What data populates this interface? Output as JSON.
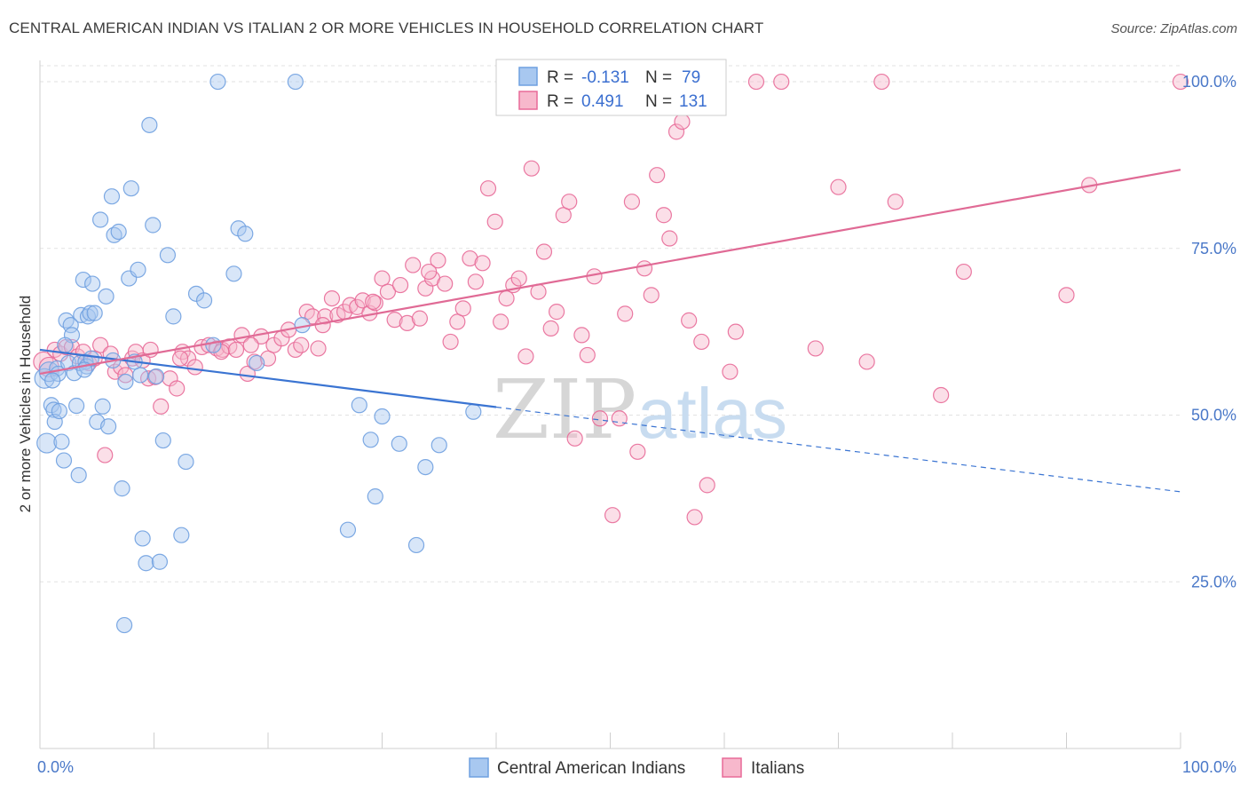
{
  "header": {
    "title": "CENTRAL AMERICAN INDIAN VS ITALIAN 2 OR MORE VEHICLES IN HOUSEHOLD CORRELATION CHART",
    "source": "Source: ZipAtlas.com"
  },
  "legend": {
    "rows": [
      {
        "r_label": "R =",
        "r_value": "-0.131",
        "n_label": "N =",
        "n_value": "79",
        "color": "#a8c8f0"
      },
      {
        "r_label": "R =",
        "r_value": "0.491",
        "n_label": "N =",
        "n_value": "131",
        "color": "#f7b8cc"
      }
    ]
  },
  "watermark": {
    "zip": "ZIP",
    "atlas": "atlas"
  },
  "chart_data": {
    "type": "scatter",
    "xlabel": "",
    "ylabel": "2 or more Vehicles in Household",
    "xlim": [
      0,
      100
    ],
    "ylim": [
      0,
      104
    ],
    "x_tick_labels": [
      "0.0%",
      "100.0%"
    ],
    "y_ticks": [
      25,
      50,
      75,
      100
    ],
    "y_tick_labels": [
      "25.0%",
      "50.0%",
      "75.0%",
      "100.0%"
    ],
    "grid": true,
    "legend_position": "top-center",
    "series": [
      {
        "name": "Central American Indians",
        "color": "#6fa0e0",
        "fill": "#a8c8f0",
        "trend": {
          "x0": 0,
          "y0": 59.8,
          "x1": 40,
          "y1": 51.2,
          "dashed_to_x": 100,
          "dashed_to_y": 38.5
        },
        "points": [
          [
            0.4,
            55.5
          ],
          [
            0.6,
            45.8
          ],
          [
            0.8,
            56.5
          ],
          [
            1.0,
            51.5
          ],
          [
            1.2,
            50.8
          ],
          [
            1.3,
            49
          ],
          [
            1.5,
            57
          ],
          [
            1.6,
            56.2
          ],
          [
            1.7,
            50.6
          ],
          [
            1.9,
            46
          ],
          [
            2.1,
            43.2
          ],
          [
            2.3,
            64.2
          ],
          [
            2.5,
            57.8
          ],
          [
            2.7,
            63.5
          ],
          [
            2.8,
            62
          ],
          [
            3.0,
            56.3
          ],
          [
            3.2,
            51.4
          ],
          [
            3.4,
            41
          ],
          [
            3.5,
            57.8
          ],
          [
            3.6,
            65
          ],
          [
            3.8,
            70.3
          ],
          [
            4.0,
            58
          ],
          [
            4.1,
            57.3
          ],
          [
            4.2,
            64.8
          ],
          [
            4.4,
            65.3
          ],
          [
            4.6,
            69.7
          ],
          [
            4.8,
            65.3
          ],
          [
            5.0,
            49
          ],
          [
            5.3,
            79.3
          ],
          [
            5.5,
            51.3
          ],
          [
            5.8,
            67.8
          ],
          [
            6.0,
            48.3
          ],
          [
            6.3,
            82.8
          ],
          [
            6.5,
            77
          ],
          [
            6.9,
            77.5
          ],
          [
            7.2,
            39
          ],
          [
            7.5,
            55
          ],
          [
            7.8,
            70.5
          ],
          [
            8.0,
            84
          ],
          [
            8.3,
            58
          ],
          [
            8.6,
            71.8
          ],
          [
            9.0,
            31.5
          ],
          [
            9.3,
            27.8
          ],
          [
            9.6,
            93.5
          ],
          [
            9.9,
            78.5
          ],
          [
            10.2,
            55.8
          ],
          [
            10.5,
            28
          ],
          [
            10.8,
            46.2
          ],
          [
            11.2,
            74
          ],
          [
            11.7,
            64.8
          ],
          [
            12.4,
            32
          ],
          [
            12.8,
            43
          ],
          [
            13.7,
            68.2
          ],
          [
            14.4,
            67.2
          ],
          [
            15.2,
            60.5
          ],
          [
            15.6,
            100
          ],
          [
            17.0,
            71.2
          ],
          [
            17.4,
            78
          ],
          [
            18.0,
            77.2
          ],
          [
            19.0,
            57.8
          ],
          [
            22.4,
            100
          ],
          [
            23.0,
            63.5
          ],
          [
            27.0,
            32.8
          ],
          [
            28.0,
            51.5
          ],
          [
            29.0,
            46.3
          ],
          [
            29.4,
            37.8
          ],
          [
            30.0,
            49.8
          ],
          [
            31.5,
            45.7
          ],
          [
            33.0,
            30.5
          ],
          [
            33.8,
            42.2
          ],
          [
            35.0,
            45.5
          ],
          [
            38.0,
            50.5
          ],
          [
            7.4,
            18.5
          ],
          [
            2.2,
            60.5
          ],
          [
            4.5,
            58.5
          ],
          [
            1.1,
            55.2
          ],
          [
            3.9,
            56.8
          ],
          [
            6.4,
            58.2
          ],
          [
            8.8,
            56
          ]
        ]
      },
      {
        "name": "Italians",
        "color": "#e86a98",
        "fill": "#f7b8cc",
        "trend": {
          "x0": 0,
          "y0": 56.2,
          "x1": 100,
          "y1": 86.8
        },
        "points": [
          [
            0.3,
            58
          ],
          [
            0.8,
            57.2
          ],
          [
            1.3,
            59.8
          ],
          [
            1.8,
            59.2
          ],
          [
            2.3,
            60.2
          ],
          [
            2.8,
            60.2
          ],
          [
            3.3,
            58.8
          ],
          [
            3.8,
            59.5
          ],
          [
            4.3,
            57.8
          ],
          [
            4.8,
            58.5
          ],
          [
            5.3,
            60.5
          ],
          [
            5.7,
            44
          ],
          [
            6.2,
            59.2
          ],
          [
            6.6,
            56.5
          ],
          [
            7.1,
            57.2
          ],
          [
            7.5,
            56
          ],
          [
            8.1,
            58.5
          ],
          [
            8.4,
            59.5
          ],
          [
            9.0,
            58.2
          ],
          [
            9.5,
            55.5
          ],
          [
            10.1,
            55.7
          ],
          [
            10.6,
            51.3
          ],
          [
            11.4,
            55.5
          ],
          [
            12.0,
            54
          ],
          [
            12.5,
            59.5
          ],
          [
            13.0,
            58.5
          ],
          [
            13.6,
            57.2
          ],
          [
            14.2,
            60.2
          ],
          [
            14.8,
            60.5
          ],
          [
            15.5,
            60
          ],
          [
            16.0,
            59.8
          ],
          [
            16.6,
            60.3
          ],
          [
            17.2,
            59.8
          ],
          [
            17.7,
            62
          ],
          [
            18.2,
            56.2
          ],
          [
            18.8,
            58
          ],
          [
            19.4,
            61.8
          ],
          [
            20.0,
            58.5
          ],
          [
            20.5,
            60.5
          ],
          [
            21.2,
            61.5
          ],
          [
            21.8,
            62.8
          ],
          [
            22.4,
            59.8
          ],
          [
            22.9,
            60.5
          ],
          [
            23.4,
            65.5
          ],
          [
            23.9,
            64.8
          ],
          [
            24.4,
            60
          ],
          [
            25.0,
            64.8
          ],
          [
            25.6,
            67.5
          ],
          [
            26.1,
            65
          ],
          [
            26.7,
            65.5
          ],
          [
            27.2,
            66.5
          ],
          [
            27.8,
            66.2
          ],
          [
            28.3,
            67.2
          ],
          [
            28.9,
            65.3
          ],
          [
            29.4,
            66.8
          ],
          [
            30.0,
            70.5
          ],
          [
            30.5,
            68.5
          ],
          [
            31.1,
            64.3
          ],
          [
            31.6,
            69.5
          ],
          [
            32.2,
            63.8
          ],
          [
            32.7,
            72.5
          ],
          [
            33.3,
            64.5
          ],
          [
            33.8,
            69
          ],
          [
            34.4,
            70.5
          ],
          [
            34.9,
            73.2
          ],
          [
            35.5,
            69.7
          ],
          [
            36.0,
            61
          ],
          [
            36.6,
            64
          ],
          [
            37.1,
            66
          ],
          [
            37.7,
            73.5
          ],
          [
            38.2,
            70
          ],
          [
            38.8,
            72.8
          ],
          [
            39.3,
            84
          ],
          [
            39.9,
            79
          ],
          [
            40.4,
            64
          ],
          [
            40.9,
            67.5
          ],
          [
            41.5,
            69.5
          ],
          [
            42.0,
            70.5
          ],
          [
            42.6,
            58.8
          ],
          [
            43.1,
            87
          ],
          [
            43.7,
            68.5
          ],
          [
            44.2,
            74.5
          ],
          [
            44.8,
            63
          ],
          [
            45.3,
            65.5
          ],
          [
            45.9,
            80
          ],
          [
            46.4,
            82
          ],
          [
            46.9,
            46.5
          ],
          [
            47.5,
            62
          ],
          [
            48.0,
            59
          ],
          [
            48.6,
            70.8
          ],
          [
            49.1,
            49.5
          ],
          [
            50.2,
            35
          ],
          [
            50.8,
            49.5
          ],
          [
            51.3,
            65.2
          ],
          [
            51.9,
            82
          ],
          [
            52.4,
            44.5
          ],
          [
            53.0,
            72
          ],
          [
            53.6,
            68
          ],
          [
            54.1,
            86
          ],
          [
            54.7,
            80
          ],
          [
            55.2,
            76.5
          ],
          [
            55.8,
            92.5
          ],
          [
            56.3,
            94
          ],
          [
            56.9,
            64.2
          ],
          [
            57.4,
            34.7
          ],
          [
            58.0,
            61
          ],
          [
            58.5,
            39.5
          ],
          [
            60.5,
            56.5
          ],
          [
            61.0,
            62.5
          ],
          [
            62.8,
            100
          ],
          [
            65.0,
            100
          ],
          [
            68.0,
            60
          ],
          [
            70.0,
            84.2
          ],
          [
            72.5,
            58
          ],
          [
            73.8,
            100
          ],
          [
            75.0,
            82
          ],
          [
            79.0,
            53
          ],
          [
            81.0,
            71.5
          ],
          [
            90.0,
            68
          ],
          [
            92.0,
            84.5
          ],
          [
            100,
            100
          ],
          [
            51.5,
            100
          ],
          [
            53.0,
            100
          ],
          [
            49.5,
            100
          ],
          [
            12.3,
            58.5
          ],
          [
            18.5,
            60.5
          ],
          [
            24.8,
            63.5
          ],
          [
            29.2,
            67
          ],
          [
            34.1,
            71.5
          ],
          [
            9.7,
            59.8
          ],
          [
            15.9,
            59.5
          ]
        ]
      }
    ]
  }
}
